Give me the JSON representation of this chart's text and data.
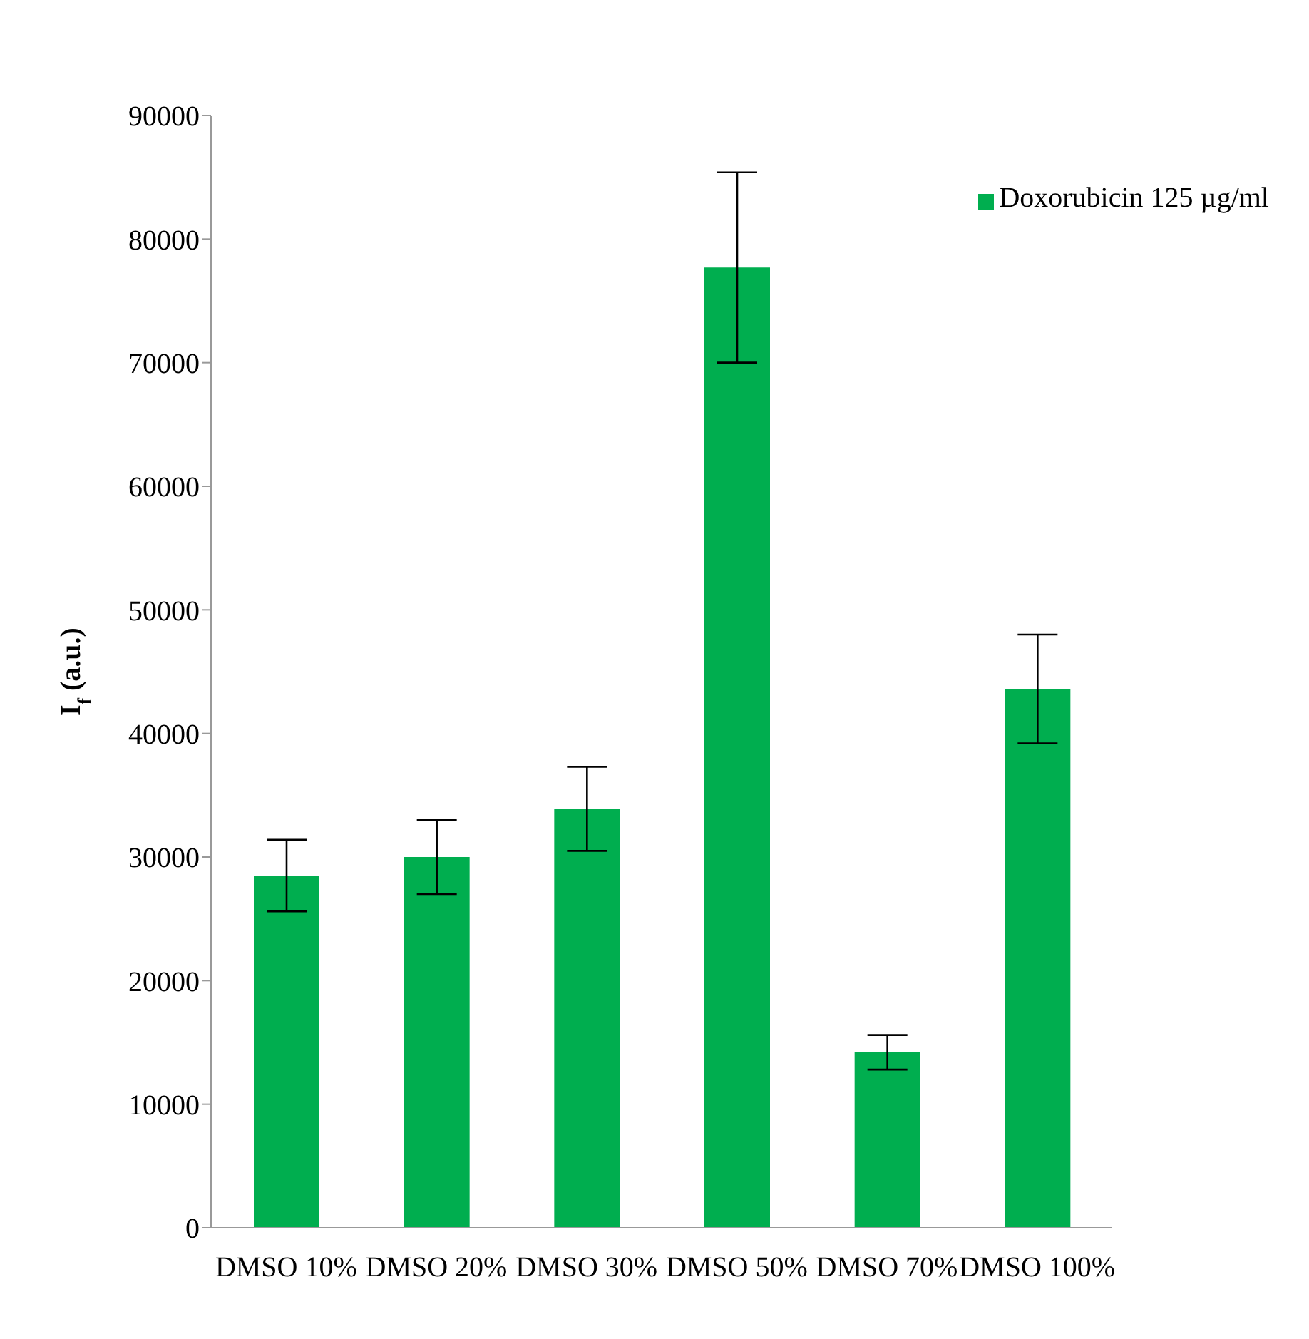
{
  "chart_data": {
    "type": "bar",
    "ylabel": "I$_{f}$ (a.u.)",
    "categories": [
      "DMSO 10%",
      "DMSO 20%",
      "DMSO 30%",
      "DMSO 50%",
      "DMSO 70%",
      "DMSO 100%"
    ],
    "series": [
      {
        "name": "Doxorubicin 125 µg/ml",
        "color": "#00ae4f",
        "values": [
          28500,
          30000,
          33900,
          77700,
          14200,
          43600
        ],
        "errors": [
          2900,
          3000,
          3400,
          7700,
          1400,
          4400
        ]
      }
    ],
    "ylim": [
      0,
      90000
    ],
    "yticks": [
      0,
      10000,
      20000,
      30000,
      40000,
      50000,
      60000,
      70000,
      80000,
      90000
    ],
    "grid": false,
    "legend": "top right"
  }
}
